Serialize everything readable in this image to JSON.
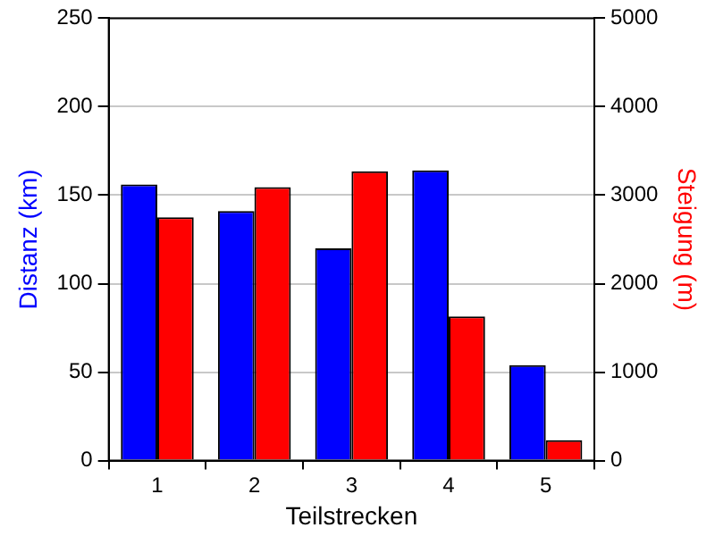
{
  "chart_data": {
    "type": "bar",
    "xlabel": "Teilstrecken",
    "ylabel": "Distanz (km)",
    "y2label": "Steigung (m)",
    "categories": [
      "1",
      "2",
      "3",
      "4",
      "5"
    ],
    "series": [
      {
        "color": "#0000ff",
        "values": [
          156,
          141,
          120,
          164,
          54
        ]
      },
      {
        "color": "#ff0000",
        "values": [
          2750,
          3090,
          3270,
          1630,
          230
        ],
        "axis": "y2"
      }
    ],
    "ylim": [
      0,
      250
    ],
    "yticks": [
      0,
      50,
      100,
      150,
      200,
      250
    ],
    "y2lim": [
      0,
      5000
    ],
    "y2ticks": [
      0,
      1000,
      2000,
      3000,
      4000,
      5000
    ],
    "grid": "y",
    "legend": false
  }
}
